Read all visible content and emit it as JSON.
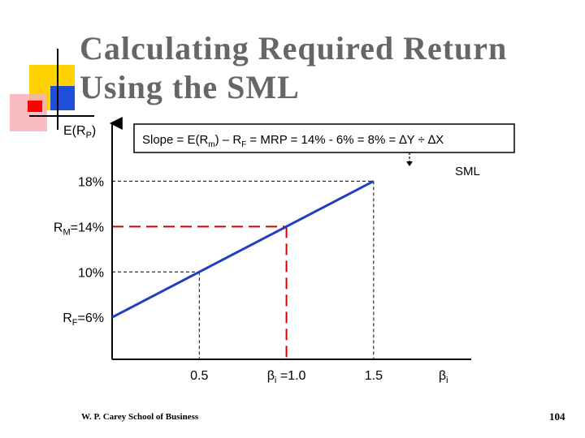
{
  "slide": {
    "title_line1": "Calculating Required Return",
    "title_line2": "Using the SML",
    "footer": "W. P. Carey School of Business",
    "page_number": "104",
    "colors": {
      "title": "#666666",
      "accent_yellow": "#FFD200",
      "accent_blue": "#1F4FD9",
      "accent_red": "#FF0000",
      "accent_pink": "#F9B0B8",
      "sml_line": "#2040C0",
      "market_guide": "#D00000",
      "guide": "#000000"
    }
  },
  "chart_data": {
    "type": "line",
    "ylabel_main": "E(R",
    "ylabel_sub": "P",
    "ylabel_close": ")",
    "xlim": [
      0,
      2.06
    ],
    "ylim": [
      2.3,
      23.1
    ],
    "series": [
      {
        "name": "SML",
        "x": [
          0,
          1.5
        ],
        "y": [
          6,
          18
        ]
      }
    ],
    "y_ticks": [
      {
        "value": 18,
        "main": "18%",
        "sub": "",
        "suffix": ""
      },
      {
        "value": 14,
        "main": "R",
        "sub": "M",
        "suffix": "=14%"
      },
      {
        "value": 10,
        "main": "10%",
        "sub": "",
        "suffix": ""
      },
      {
        "value": 6,
        "main": "R",
        "sub": "F",
        "suffix": "=6%"
      }
    ],
    "x_ticks": [
      {
        "value": 0.5,
        "main": "0.5",
        "sub": "",
        "suffix": ""
      },
      {
        "value": 1.0,
        "main": "β",
        "sub": "i",
        "suffix": " =1.0",
        "color": "#D00000"
      },
      {
        "value": 1.5,
        "main": "1.5",
        "sub": "",
        "suffix": ""
      },
      {
        "value": 1.9,
        "main": "β",
        "sub": "i",
        "suffix": ""
      }
    ],
    "guides": [
      {
        "x": 0.5,
        "y": 10,
        "color": "#000000"
      },
      {
        "x": 1.0,
        "y": 14,
        "color": "#D00000"
      },
      {
        "x": 1.5,
        "y": 18,
        "color": "#000000"
      }
    ],
    "slope_annotation": {
      "parts": [
        {
          "t": "Slope = E(R"
        },
        {
          "t": "m",
          "sub": true
        },
        {
          "t": ") – R"
        },
        {
          "t": "F",
          "sub": true
        },
        {
          "t": " = MRP = 14% - 6% = 8% = ∆Y ÷ ∆X"
        }
      ]
    },
    "sml_label": "SML"
  }
}
